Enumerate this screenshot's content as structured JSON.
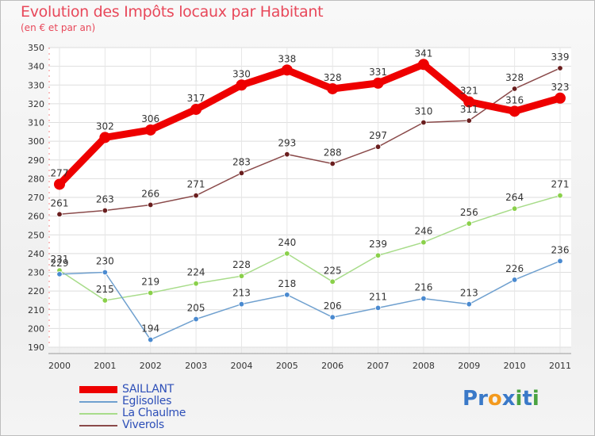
{
  "title": "Evolution des Impôts locaux par Habitant",
  "subtitle": "(en € et par an)",
  "brand": {
    "name": "Proxiti",
    "letters": [
      {
        "ch": "P",
        "color": "#3a79c8"
      },
      {
        "ch": "r",
        "color": "#3a79c8"
      },
      {
        "ch": "o",
        "color": "#f39a1e"
      },
      {
        "ch": "x",
        "color": "#3a79c8"
      },
      {
        "ch": "i",
        "color": "#4aa341"
      },
      {
        "ch": "t",
        "color": "#3a79c8"
      },
      {
        "ch": "i",
        "color": "#4aa341"
      }
    ]
  },
  "chart_data": {
    "type": "line",
    "x": [
      "2000",
      "2001",
      "2002",
      "2003",
      "2004",
      "2005",
      "2006",
      "2007",
      "2008",
      "2009",
      "2010",
      "2011"
    ],
    "ylim": [
      190,
      350
    ],
    "yticks": [
      190,
      200,
      210,
      220,
      230,
      240,
      250,
      260,
      270,
      280,
      290,
      300,
      310,
      320,
      330,
      340,
      350
    ],
    "grid": true,
    "legend_position": "bottom-left",
    "series": [
      {
        "name": "SAILLANT",
        "color": "#ee0000",
        "marker_fill": "#ee0000",
        "width": "thick",
        "values": [
          277,
          302,
          306,
          317,
          330,
          338,
          328,
          331,
          341,
          321,
          316,
          323
        ]
      },
      {
        "name": "Eglisolles",
        "color": "#6fa0cf",
        "marker_fill": "#4a8ad0",
        "width": "thin",
        "values": [
          229,
          230,
          194,
          205,
          213,
          218,
          206,
          211,
          216,
          213,
          226,
          236
        ]
      },
      {
        "name": "La Chaulme",
        "color": "#a8dc8a",
        "marker_fill": "#8ad04a",
        "width": "thin",
        "values": [
          231,
          215,
          219,
          224,
          228,
          240,
          225,
          239,
          246,
          256,
          264,
          271
        ]
      },
      {
        "name": "Viverols",
        "color": "#8a4a4a",
        "marker_fill": "#6a1e1e",
        "width": "thin",
        "values": [
          261,
          263,
          266,
          271,
          283,
          293,
          288,
          297,
          310,
          311,
          328,
          339
        ]
      }
    ]
  }
}
